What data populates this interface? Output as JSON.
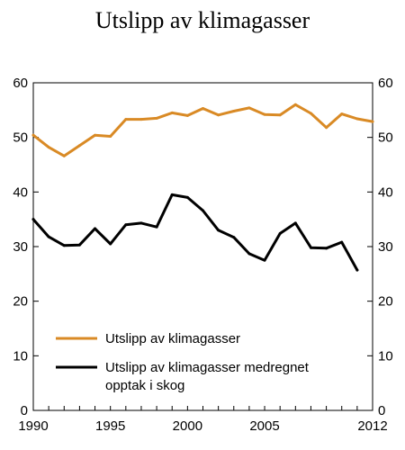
{
  "chart_data": {
    "type": "line",
    "title": "Utslipp av klimagasser",
    "xlabel": "",
    "ylabel": "",
    "xlim": [
      1990,
      2012
    ],
    "ylim": [
      0,
      60
    ],
    "y_ticks": [
      0,
      10,
      20,
      30,
      40,
      50,
      60
    ],
    "x_tick_labels": [
      {
        "x": 1990,
        "label": "1990"
      },
      {
        "x": 1995,
        "label": "1995"
      },
      {
        "x": 2000,
        "label": "2000"
      },
      {
        "x": 2005,
        "label": "2005"
      },
      {
        "x": 2012,
        "label": "2012"
      }
    ],
    "grid": false,
    "legend_position": "bottom-left",
    "series": [
      {
        "name": "Utslipp av klimagasser",
        "color": "#d98a25",
        "x": [
          1990,
          1991,
          1992,
          1993,
          1994,
          1995,
          1996,
          1997,
          1998,
          1999,
          2000,
          2001,
          2002,
          2003,
          2004,
          2005,
          2006,
          2007,
          2008,
          2009,
          2010,
          2011,
          2012
        ],
        "values": [
          50.4,
          48.2,
          46.6,
          48.5,
          50.4,
          50.2,
          53.3,
          53.3,
          53.5,
          54.5,
          54.0,
          55.3,
          54.1,
          54.8,
          55.4,
          54.2,
          54.1,
          56.0,
          54.4,
          51.8,
          54.3,
          53.4,
          52.9
        ]
      },
      {
        "name": "Utslipp av klimagasser medregnet opptak i skog",
        "legend_lines": [
          "Utslipp av klimagasser medregnet",
          "opptak i skog"
        ],
        "color": "#000000",
        "x": [
          1990,
          1991,
          1992,
          1993,
          1994,
          1995,
          1996,
          1997,
          1998,
          1999,
          2000,
          2001,
          2002,
          2003,
          2004,
          2005,
          2006,
          2007,
          2008,
          2009,
          2010,
          2011
        ],
        "values": [
          35.0,
          31.8,
          30.2,
          30.3,
          33.3,
          30.5,
          34.0,
          34.3,
          33.6,
          39.5,
          39.0,
          36.6,
          33.0,
          31.7,
          28.7,
          27.5,
          32.4,
          34.3,
          29.8,
          29.7,
          30.8,
          25.7
        ]
      }
    ]
  }
}
